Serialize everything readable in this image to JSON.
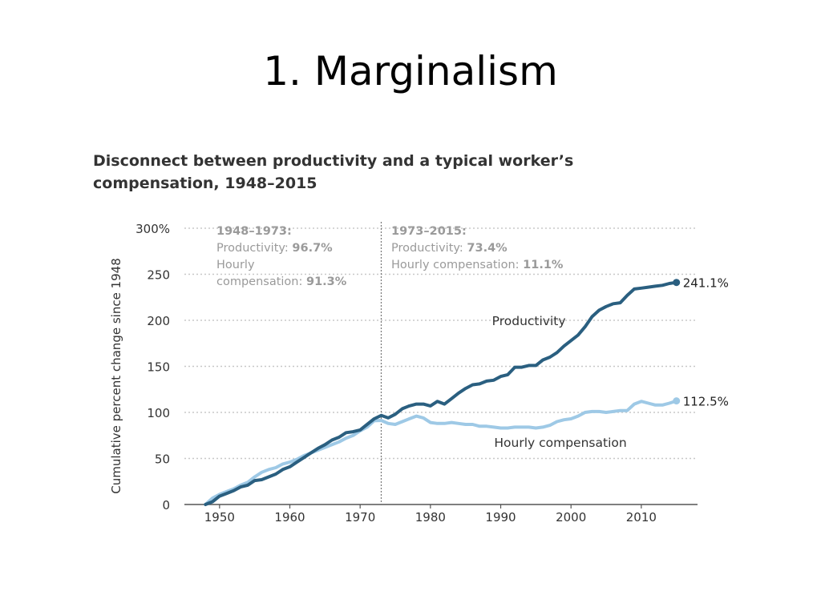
{
  "slide": {
    "title": "1. Marginalism"
  },
  "colors": {
    "productivity": "#2a5f80",
    "compensation": "#9ec9e6",
    "grid": "#c8c8c8",
    "text": "#333333",
    "annotation": "#9a9a9a"
  },
  "chart_data": {
    "type": "line",
    "title_lines": [
      "Disconnect between productivity and a typical worker’s",
      "compensation, 1948–2015"
    ],
    "ylabel": "Cumulative percent change since 1948",
    "xlabel": "",
    "ylim": [
      0,
      300
    ],
    "xlim": [
      1945,
      2018
    ],
    "yticks": [
      0,
      50,
      100,
      150,
      200,
      250,
      300
    ],
    "ytick_labels": [
      "0",
      "50",
      "100",
      "150",
      "200",
      "250",
      "300%"
    ],
    "xticks": [
      1950,
      1960,
      1970,
      1980,
      1990,
      2000,
      2010
    ],
    "xtick_labels": [
      "1950",
      "1960",
      "1970",
      "1980",
      "1990",
      "2000",
      "2010"
    ],
    "grid": "horizontal dotted",
    "divider_year": 1973,
    "annotations": [
      {
        "lines": [
          {
            "text": "1948–1973:",
            "bold": true
          }
        ],
        "position": "left-top"
      },
      {
        "lines": [
          {
            "text": "Productivity: "
          },
          {
            "text": "96.7%",
            "bold": true
          }
        ]
      },
      {
        "lines": [
          {
            "text": "Hourly"
          }
        ]
      },
      {
        "lines": [
          {
            "text": "compensation: "
          },
          {
            "text": "91.3%",
            "bold": true
          }
        ]
      }
    ],
    "annotation_blocks": [
      {
        "lines": [
          [
            "1948–1973:"
          ],
          [
            "Productivity: ",
            "96.7%"
          ],
          [
            "Hourly"
          ],
          [
            "compensation: ",
            "91.3%"
          ]
        ]
      },
      {
        "lines": [
          [
            "1973–2015:"
          ],
          [
            "Productivity: ",
            "73.4%"
          ],
          [
            "Hourly compensation: ",
            "11.1%"
          ]
        ]
      }
    ],
    "series": [
      {
        "name": "Productivity",
        "end_label": "241.1%",
        "x": [
          1948,
          1949,
          1950,
          1951,
          1952,
          1953,
          1954,
          1955,
          1956,
          1957,
          1958,
          1959,
          1960,
          1961,
          1962,
          1963,
          1964,
          1965,
          1966,
          1967,
          1968,
          1969,
          1970,
          1971,
          1972,
          1973,
          1974,
          1975,
          1976,
          1977,
          1978,
          1979,
          1980,
          1981,
          1982,
          1983,
          1984,
          1985,
          1986,
          1987,
          1988,
          1989,
          1990,
          1991,
          1992,
          1993,
          1994,
          1995,
          1996,
          1997,
          1998,
          1999,
          2000,
          2001,
          2002,
          2003,
          2004,
          2005,
          2006,
          2007,
          2008,
          2009,
          2010,
          2011,
          2012,
          2013,
          2014,
          2015
        ],
        "values": [
          0,
          3,
          9,
          12,
          15,
          19,
          21,
          26,
          27,
          30,
          33,
          38,
          41,
          46,
          51,
          56,
          61,
          65,
          70,
          73,
          78,
          79,
          81,
          87,
          93,
          96.7,
          94,
          98,
          104,
          107,
          109,
          109,
          107,
          112,
          109,
          115,
          121,
          126,
          130,
          131,
          134,
          135,
          139,
          141,
          149,
          149,
          151,
          151,
          157,
          160,
          165,
          172,
          178,
          184,
          193,
          204,
          211,
          215,
          218,
          219,
          227,
          234,
          235,
          236,
          237,
          238,
          240,
          241.1
        ]
      },
      {
        "name": "Hourly compensation",
        "end_label": "112.5%",
        "x": [
          1948,
          1949,
          1950,
          1951,
          1952,
          1953,
          1954,
          1955,
          1956,
          1957,
          1958,
          1959,
          1960,
          1961,
          1962,
          1963,
          1964,
          1965,
          1966,
          1967,
          1968,
          1969,
          1970,
          1971,
          1972,
          1973,
          1974,
          1975,
          1976,
          1977,
          1978,
          1979,
          1980,
          1981,
          1982,
          1983,
          1984,
          1985,
          1986,
          1987,
          1988,
          1989,
          1990,
          1991,
          1992,
          1993,
          1994,
          1995,
          1996,
          1997,
          1998,
          1999,
          2000,
          2001,
          2002,
          2003,
          2004,
          2005,
          2006,
          2007,
          2008,
          2009,
          2010,
          2011,
          2012,
          2013,
          2014,
          2015
        ],
        "values": [
          0,
          7,
          11,
          14,
          17,
          21,
          24,
          30,
          35,
          38,
          40,
          44,
          46,
          49,
          53,
          56,
          59,
          62,
          65,
          68,
          72,
          75,
          80,
          84,
          91,
          91.3,
          88,
          87,
          90,
          93,
          96,
          94,
          89,
          88,
          88,
          89,
          88,
          87,
          87,
          85,
          85,
          84,
          83,
          83,
          84,
          84,
          84,
          83,
          84,
          86,
          90,
          92,
          93,
          96,
          100,
          101,
          101,
          100,
          101,
          102,
          102,
          109,
          112,
          110,
          108,
          108,
          110,
          112.5
        ]
      }
    ]
  }
}
